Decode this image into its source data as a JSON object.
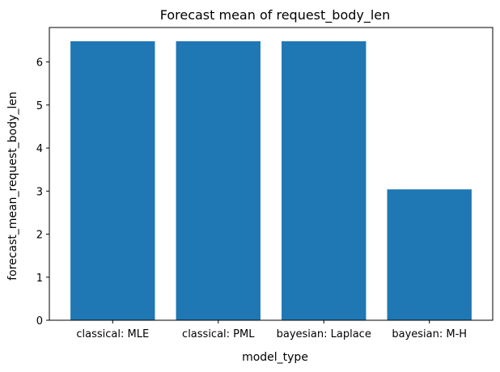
{
  "chart_data": {
    "type": "bar",
    "title": "Forecast mean of request_body_len",
    "xlabel": "model_type",
    "ylabel": "forecast_mean_request_body_len",
    "categories": [
      "classical: MLE",
      "classical: PML",
      "bayesian: Laplace",
      "bayesian: M-H"
    ],
    "values": [
      6.48,
      6.48,
      6.48,
      3.04
    ],
    "ylim": [
      0,
      6.8
    ],
    "yticks": [
      0,
      1,
      2,
      3,
      4,
      5,
      6
    ],
    "grid": false,
    "legend": "none",
    "bar_color": "#1f77b4"
  }
}
